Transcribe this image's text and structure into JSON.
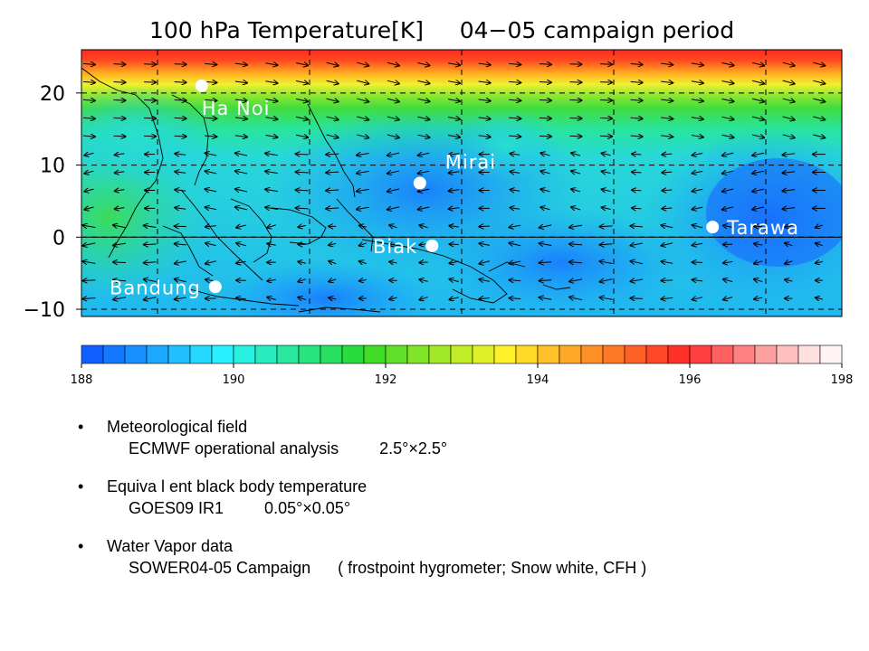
{
  "chart_data": {
    "type": "heatmap",
    "title": "100 hPa Temperature[K]     04−05 campaign period",
    "xlabel": "",
    "ylabel": "",
    "x_range": [
      90,
      190
    ],
    "ylim": [
      -11,
      26
    ],
    "y_ticks": [
      20,
      10,
      0,
      -10
    ],
    "y_tick_labels": [
      "20",
      "10",
      "0",
      "−10"
    ],
    "x_grid_lines": [
      100,
      120,
      140,
      160,
      180
    ],
    "grid": true,
    "grid_style": "dashed",
    "colorbar": {
      "min": 188,
      "max": 198,
      "ticks": [
        188,
        190,
        192,
        194,
        196,
        198
      ],
      "tick_labels": [
        "188",
        "190",
        "192",
        "194",
        "196",
        "198"
      ],
      "colors": [
        "#1060ff",
        "#1478ff",
        "#1890ff",
        "#1ca8ff",
        "#20c0ff",
        "#24d8ff",
        "#28f0ff",
        "#28f0e0",
        "#28ecc0",
        "#28e8a0",
        "#28e480",
        "#28e060",
        "#28dc40",
        "#40dc28",
        "#60e028",
        "#80e428",
        "#a0e828",
        "#c0ec28",
        "#e0f028",
        "#fff028",
        "#ffd828",
        "#ffc028",
        "#ffa828",
        "#ff9028",
        "#ff7828",
        "#ff6028",
        "#ff4828",
        "#ff3028",
        "#ff4040",
        "#ff6060",
        "#ff8080",
        "#ffa0a0",
        "#ffc0c0",
        "#ffe0e0",
        "#fff4f4"
      ]
    },
    "stations": [
      {
        "name": "Ha Noi",
        "lon": 105.8,
        "lat": 21.0
      },
      {
        "name": "Mirai",
        "lon": 134.5,
        "lat": 7.5
      },
      {
        "name": "Tarawa",
        "lon": 173.0,
        "lat": 1.4
      },
      {
        "name": "Biak",
        "lon": 136.1,
        "lat": -1.2
      },
      {
        "name": "Bandung",
        "lon": 107.6,
        "lat": -6.9
      }
    ]
  },
  "notes": [
    {
      "head": "Meteorological field",
      "sub": "ECMWF operational analysis         2.5°×2.5°"
    },
    {
      "head": "Equiva l ent black body temperature",
      "sub": "GOES09 IR1         0.05°×0.05°"
    },
    {
      "head": "Water    Vapor data",
      "sub": "SOWER04-05 Campaign      ( frostpoint hygrometer; Snow white, CFH )"
    }
  ],
  "bullet": "•"
}
